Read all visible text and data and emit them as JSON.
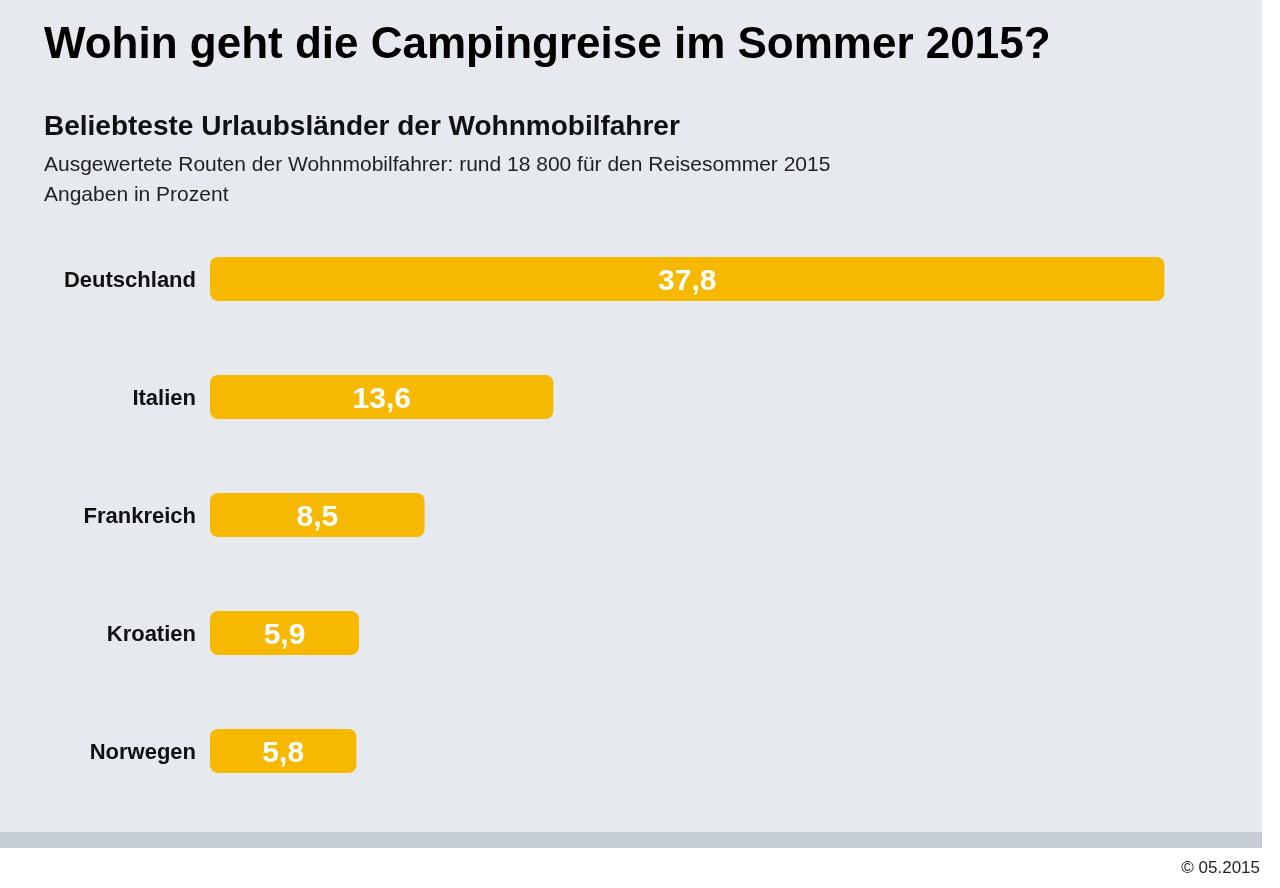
{
  "chart_data": {
    "type": "bar",
    "orientation": "horizontal",
    "title": "Wohin geht die Campingreise im Sommer 2015?",
    "subtitle": "Beliebteste Urlaubsländer der Wohnmobilfahrer",
    "annotations": [
      "Ausgewertete Routen der Wohnmobilfahrer: rund 18 800 für den Reisesommer 2015",
      "Angaben in Prozent",
      "© 05.2015"
    ],
    "categories": [
      "Deutschland",
      "Italien",
      "Frankreich",
      "Kroatien",
      "Norwegen"
    ],
    "values": [
      37.8,
      13.6,
      8.5,
      5.9,
      5.8
    ],
    "value_labels": [
      "37,8",
      "13,6",
      "8,5",
      "5,9",
      "5,8"
    ],
    "color": "#f6b800",
    "tick_labels": "y"
  }
}
